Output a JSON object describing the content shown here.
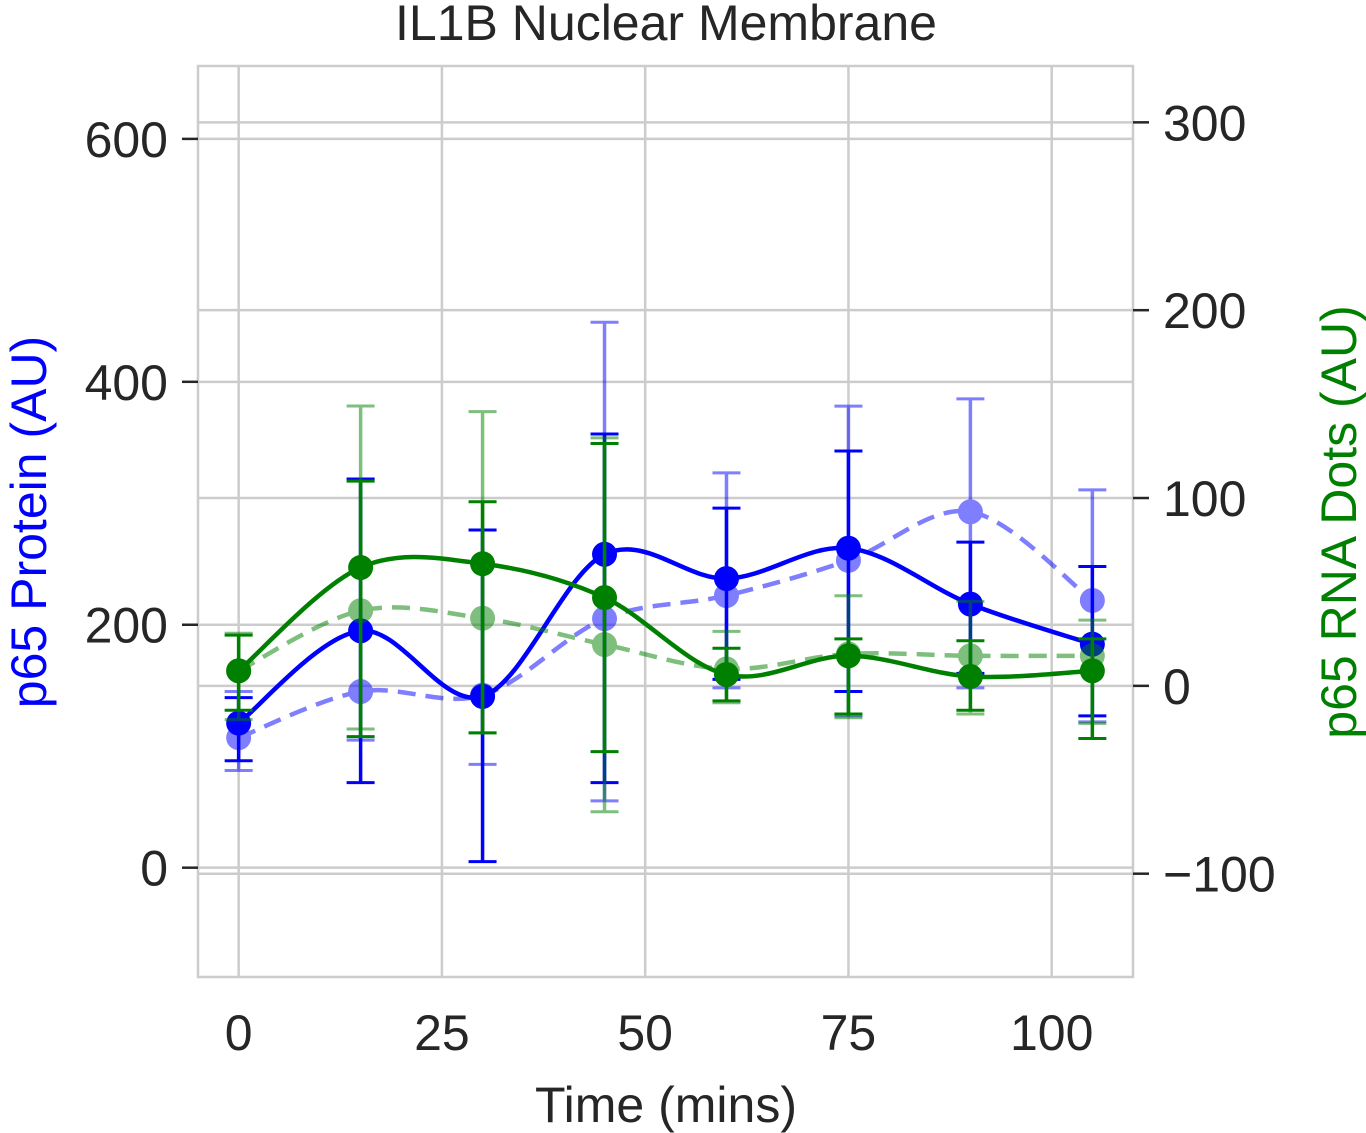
{
  "chart_data": {
    "type": "line",
    "title": "IL1B Nuclear Membrane",
    "xlabel": "Time (mins)",
    "ylabel_left": "p65 Protein (AU)",
    "ylabel_right": "p65 RNA Dots (AU)",
    "xlim": [
      -5,
      110
    ],
    "ylim_left": [
      -90,
      660
    ],
    "ylim_right": [
      -155,
      330
    ],
    "grid": true,
    "x_ticks": [
      0,
      25,
      50,
      75,
      100
    ],
    "y_left_ticks": [
      0,
      200,
      400,
      600
    ],
    "y_right_ticks": [
      -100,
      0,
      100,
      200,
      300
    ],
    "y_right_tick_labels": [
      "−100",
      "0",
      "100",
      "200",
      "300"
    ],
    "x": [
      0,
      15,
      30,
      45,
      60,
      75,
      90,
      105
    ],
    "colors": {
      "protein": "#0000ff",
      "rna": "#008000"
    },
    "series": [
      {
        "axis": "left",
        "color": "#0000ff",
        "style": "solid",
        "alpha": 1.0,
        "values": [
          119,
          195,
          141,
          258,
          238,
          263,
          217,
          184
        ],
        "err_low": [
          88,
          70,
          5,
          70,
          155,
          145,
          160,
          125
        ],
        "err_high": [
          140,
          320,
          278,
          357,
          296,
          343,
          268,
          248
        ]
      },
      {
        "axis": "left",
        "color": "#0000ff",
        "style": "dashed",
        "alpha": 0.5,
        "values": [
          107,
          145,
          142,
          205,
          224,
          253,
          293,
          220
        ],
        "err_low": [
          80,
          105,
          85,
          55,
          148,
          125,
          148,
          120
        ],
        "err_high": [
          145,
          320,
          278,
          449,
          325,
          380,
          386,
          311
        ]
      },
      {
        "axis": "right",
        "color": "#008000",
        "style": "solid",
        "alpha": 1.0,
        "values": [
          8,
          63,
          65,
          47,
          6,
          16,
          5,
          8
        ],
        "err_low": [
          -13,
          -27,
          -25,
          -35,
          -8,
          -15,
          -13,
          -28
        ],
        "err_high": [
          27,
          109,
          98,
          129,
          20,
          25,
          24,
          25
        ]
      },
      {
        "axis": "right",
        "color": "#008000",
        "style": "dashed",
        "alpha": 0.5,
        "values": [
          8,
          40,
          36,
          22,
          9,
          17,
          16,
          16
        ],
        "err_low": [
          -18,
          -23,
          -25,
          -67,
          -9,
          -17,
          -15,
          -20
        ],
        "err_high": [
          28,
          149,
          146,
          132,
          29,
          48,
          45,
          35
        ]
      }
    ]
  }
}
